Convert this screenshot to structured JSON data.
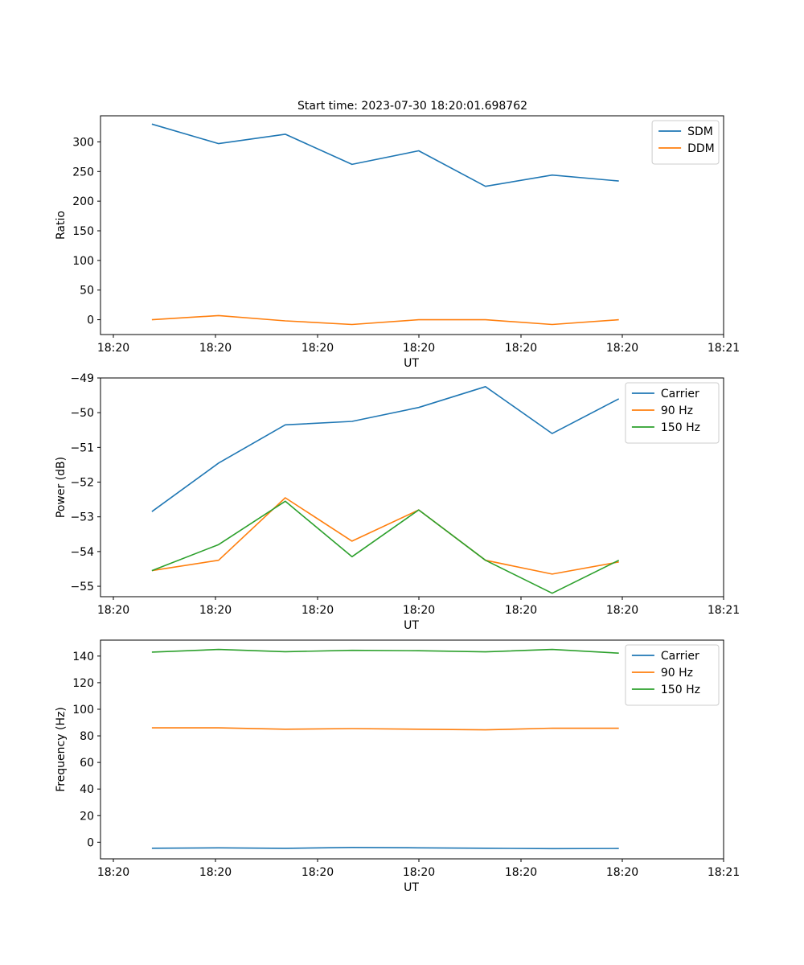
{
  "figure": {
    "title": "Start time: 2023-07-30 18:20:01.698762"
  },
  "chart_data": [
    {
      "type": "line",
      "title": "Start time: 2023-07-30 18:20:01.698762",
      "xlabel": "UT",
      "ylabel": "Ratio",
      "x_tick_labels": [
        "18:20",
        "18:20",
        "18:20",
        "18:20",
        "18:20",
        "18:20",
        "18:21"
      ],
      "x": [
        0,
        1,
        2,
        3,
        4,
        5,
        6,
        7
      ],
      "xlim": [
        -0.77,
        8.57
      ],
      "ylim": [
        -25,
        344
      ],
      "yticks": [
        0,
        50,
        100,
        150,
        200,
        250,
        300
      ],
      "legend_position": "top-right",
      "series": [
        {
          "name": "SDM",
          "color": "#1f77b4",
          "values": [
            330,
            297,
            313,
            262,
            285,
            225,
            244,
            234
          ]
        },
        {
          "name": "DDM",
          "color": "#ff7f0e",
          "values": [
            0,
            7,
            -2,
            -8,
            0,
            0,
            -8,
            0
          ]
        }
      ]
    },
    {
      "type": "line",
      "xlabel": "UT",
      "ylabel": "Power (dB)",
      "x_tick_labels": [
        "18:20",
        "18:20",
        "18:20",
        "18:20",
        "18:20",
        "18:20",
        "18:21"
      ],
      "x": [
        0,
        1,
        2,
        3,
        4,
        5,
        6,
        7
      ],
      "xlim": [
        -0.77,
        8.57
      ],
      "ylim": [
        -55.3,
        -49.0
      ],
      "yticks": [
        -55,
        -54,
        -53,
        -52,
        -51,
        -50,
        -49
      ],
      "ytick_labels": [
        "−55",
        "−54",
        "−53",
        "−52",
        "−51",
        "−50",
        "−49"
      ],
      "legend_position": "top-right",
      "series": [
        {
          "name": "Carrier",
          "color": "#1f77b4",
          "values": [
            -52.85,
            -51.45,
            -50.35,
            -50.25,
            -49.85,
            -49.25,
            -50.6,
            -49.6
          ]
        },
        {
          "name": "90 Hz",
          "color": "#ff7f0e",
          "values": [
            -54.55,
            -54.25,
            -52.45,
            -53.7,
            -52.8,
            -54.25,
            -54.65,
            -54.3
          ]
        },
        {
          "name": "150 Hz",
          "color": "#2ca02c",
          "values": [
            -54.55,
            -53.8,
            -52.55,
            -54.15,
            -52.8,
            -54.25,
            -55.2,
            -54.25
          ]
        }
      ]
    },
    {
      "type": "line",
      "xlabel": "UT",
      "ylabel": "Frequency (Hz)",
      "x_tick_labels": [
        "18:20",
        "18:20",
        "18:20",
        "18:20",
        "18:20",
        "18:20",
        "18:21"
      ],
      "x": [
        0,
        1,
        2,
        3,
        4,
        5,
        6,
        7
      ],
      "xlim": [
        -0.77,
        8.57
      ],
      "ylim": [
        -12.5,
        152
      ],
      "yticks": [
        0,
        20,
        40,
        60,
        80,
        100,
        120,
        140
      ],
      "legend_position": "top-right",
      "series": [
        {
          "name": "Carrier",
          "color": "#1f77b4",
          "values": [
            -4.5,
            -4.2,
            -4.6,
            -3.9,
            -4.2,
            -4.5,
            -4.8,
            -4.7
          ]
        },
        {
          "name": "90 Hz",
          "color": "#ff7f0e",
          "values": [
            86,
            86,
            85,
            85.5,
            85,
            84.5,
            85.8,
            85.7
          ]
        },
        {
          "name": "150 Hz",
          "color": "#2ca02c",
          "values": [
            143,
            145,
            143.3,
            144.3,
            144,
            143.2,
            145,
            142.2
          ]
        }
      ]
    }
  ]
}
